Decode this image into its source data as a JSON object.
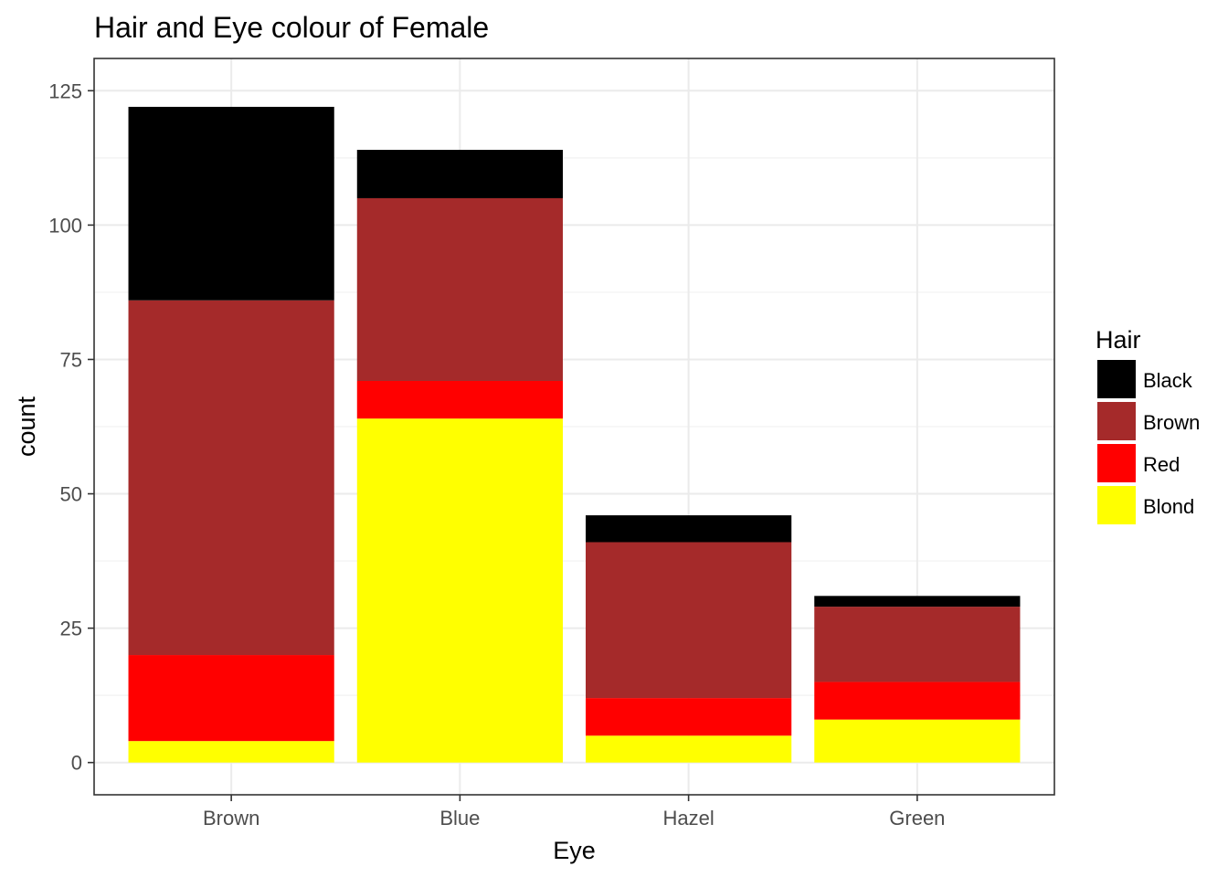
{
  "chart_data": {
    "type": "bar",
    "stacked": true,
    "title": "Hair and Eye colour of Female",
    "xlabel": "Eye",
    "ylabel": "count",
    "categories": [
      "Brown",
      "Blue",
      "Hazel",
      "Green"
    ],
    "ylim": [
      -6,
      131
    ],
    "yticks": [
      0,
      25,
      50,
      75,
      100,
      125
    ],
    "grid": true,
    "legend": {
      "title": "Hair",
      "position": "right"
    },
    "series": [
      {
        "name": "Blond",
        "color": "#FFFF00",
        "values": [
          4,
          64,
          5,
          8
        ]
      },
      {
        "name": "Red",
        "color": "#FF0000",
        "values": [
          16,
          7,
          7,
          7
        ]
      },
      {
        "name": "Brown",
        "color": "#A52A2A",
        "values": [
          66,
          34,
          29,
          14
        ]
      },
      {
        "name": "Black",
        "color": "#000000",
        "values": [
          36,
          9,
          5,
          2
        ]
      }
    ],
    "legend_order": [
      "Black",
      "Brown",
      "Red",
      "Blond"
    ]
  }
}
